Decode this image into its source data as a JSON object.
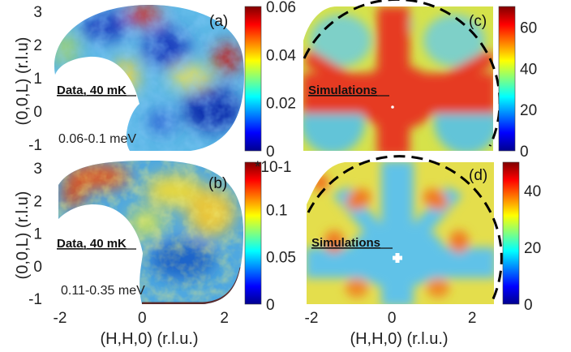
{
  "chart_data": [
    {
      "panel": "(a)",
      "type": "heatmap",
      "kind": "data",
      "annotation": "Data, 40 mK",
      "energy_range": "0.06-0.1 meV",
      "xlim": [
        -2,
        2.5
      ],
      "ylim": [
        -1,
        3
      ],
      "yticks": [
        "-1",
        "0",
        "1",
        "2",
        "3"
      ],
      "ylabel": "(0,0,L) (r.l.u)",
      "colorbar": {
        "min": 0,
        "max": 0.06,
        "ticks": [
          "0",
          "0.02",
          "0.04",
          "0.06"
        ]
      }
    },
    {
      "panel": "(b)",
      "type": "heatmap",
      "kind": "data",
      "annotation": "Data, 40 mK",
      "energy_range": "0.11-0.35 meV",
      "xlim": [
        -2,
        2.5
      ],
      "ylim": [
        -1,
        3
      ],
      "xticks": [
        "-2",
        "0",
        "2"
      ],
      "yticks": [
        "-1",
        "0",
        "1",
        "2",
        "3"
      ],
      "xlabel": "(H,H,0) (r.l.u.)",
      "ylabel": "(0,0,L) (r.l.u)",
      "colorbar": {
        "min": 0,
        "max": 0.15,
        "ticks": [
          "0",
          "0.05",
          "0.1"
        ],
        "multiplier": "*10-1"
      }
    },
    {
      "panel": "(c)",
      "type": "heatmap",
      "kind": "simulation",
      "annotation": "Simulations",
      "xlim": [
        -2,
        2.5
      ],
      "ylim": [
        -1,
        3
      ],
      "colorbar": {
        "min": 0,
        "max": 70,
        "ticks": [
          "0",
          "20",
          "40",
          "60"
        ]
      }
    },
    {
      "panel": "(d)",
      "type": "heatmap",
      "kind": "simulation",
      "annotation": "Simulations",
      "xlim": [
        -2,
        2.5
      ],
      "ylim": [
        -1,
        3
      ],
      "xticks": [
        "-2",
        "0",
        "2"
      ],
      "xlabel": "(H,H,0) (r.l.u.)",
      "colorbar": {
        "min": 0,
        "max": 50,
        "ticks": [
          "0",
          "20",
          "40"
        ]
      }
    }
  ],
  "colors": {
    "colormap": [
      "#00008f",
      "#0040ff",
      "#00c0ff",
      "#80ff80",
      "#ffff00",
      "#ff8000",
      "#d40000",
      "#800000"
    ],
    "dashed_circle": "#000000"
  }
}
